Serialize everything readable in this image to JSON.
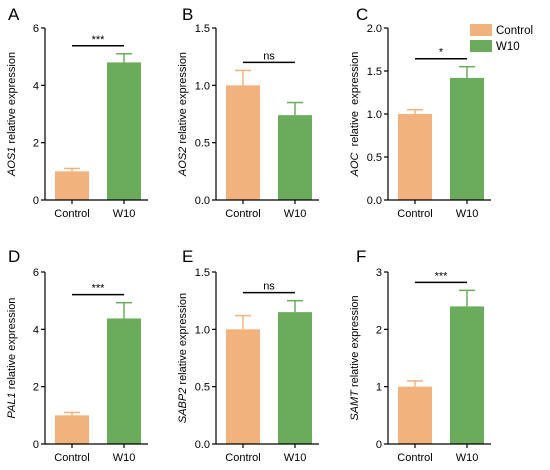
{
  "colors": {
    "control": "#f2b27d",
    "w10": "#6aac5c",
    "axis": "#000000"
  },
  "legend": {
    "placement": "top-right",
    "items": [
      {
        "label": "Control",
        "color": "#f2b27d"
      },
      {
        "label": "W10",
        "color": "#6aac5c"
      }
    ]
  },
  "chart_data": [
    {
      "letter": "A",
      "type": "bar",
      "gene": "AOS1",
      "ylabel_suffix": " relative expression",
      "categories": [
        "Control",
        "W10"
      ],
      "values": [
        1.0,
        4.8
      ],
      "errors": [
        0.1,
        0.3
      ],
      "ylim": [
        0,
        6
      ],
      "yticks": [
        0,
        2,
        4,
        6
      ],
      "ytick_labels": [
        "0",
        "2",
        "4",
        "6"
      ],
      "significance": "***"
    },
    {
      "letter": "B",
      "type": "bar",
      "gene": "AOS2",
      "ylabel_suffix": " relative expression",
      "categories": [
        "Control",
        "W10"
      ],
      "values": [
        1.0,
        0.74
      ],
      "errors": [
        0.13,
        0.11
      ],
      "ylim": [
        0,
        1.5
      ],
      "yticks": [
        0,
        0.5,
        1.0,
        1.5
      ],
      "ytick_labels": [
        "0.0",
        "0.5",
        "1.0",
        "1.5"
      ],
      "significance": "ns"
    },
    {
      "letter": "C",
      "type": "bar",
      "gene": "AOC",
      "ylabel_suffix": "  relative  expression",
      "categories": [
        "Control",
        "W10"
      ],
      "values": [
        1.0,
        1.42
      ],
      "errors": [
        0.05,
        0.13
      ],
      "ylim": [
        0,
        2.0
      ],
      "yticks": [
        0,
        0.5,
        1.0,
        1.5,
        2.0
      ],
      "ytick_labels": [
        "0.0",
        "0.5",
        "1.0",
        "1.5",
        "2.0"
      ],
      "significance": "*"
    },
    {
      "letter": "D",
      "type": "bar",
      "gene": "PAL1",
      "ylabel_suffix": " relative expression",
      "categories": [
        "Control",
        "W10"
      ],
      "values": [
        1.0,
        4.38
      ],
      "errors": [
        0.1,
        0.55
      ],
      "ylim": [
        0,
        6
      ],
      "yticks": [
        0,
        2,
        4,
        6
      ],
      "ytick_labels": [
        "0",
        "2",
        "4",
        "6"
      ],
      "significance": "***"
    },
    {
      "letter": "E",
      "type": "bar",
      "gene": "SABP2",
      "ylabel_suffix": " relative expression",
      "categories": [
        "Control",
        "W10"
      ],
      "values": [
        1.0,
        1.15
      ],
      "errors": [
        0.12,
        0.1
      ],
      "ylim": [
        0,
        1.5
      ],
      "yticks": [
        0,
        0.5,
        1.0,
        1.5
      ],
      "ytick_labels": [
        "0.0",
        "0.5",
        "1.0",
        "1.5"
      ],
      "significance": "ns"
    },
    {
      "letter": "F",
      "type": "bar",
      "gene": "SAMT",
      "ylabel_suffix": " relative expression",
      "categories": [
        "Control",
        "W10"
      ],
      "values": [
        1.0,
        2.4
      ],
      "errors": [
        0.1,
        0.28
      ],
      "ylim": [
        0,
        3
      ],
      "yticks": [
        0,
        1,
        2,
        3
      ],
      "ytick_labels": [
        "0",
        "1",
        "2",
        "3"
      ],
      "significance": "***"
    }
  ]
}
